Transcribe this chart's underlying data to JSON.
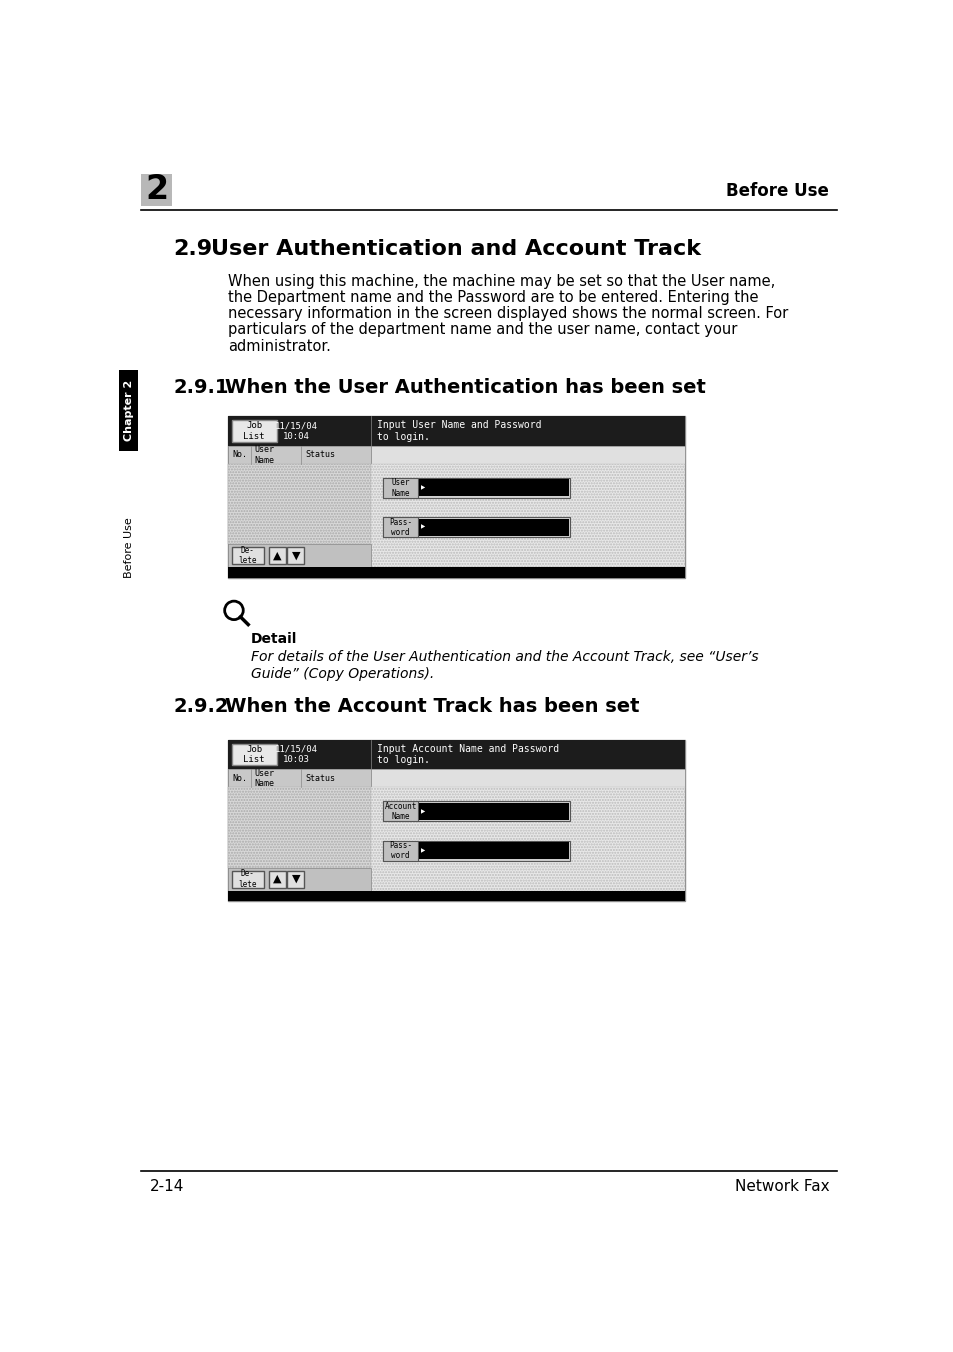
{
  "page_number": "2-14",
  "page_footer_right": "Network Fax",
  "header_number": "2",
  "header_right": "Before Use",
  "sidebar_top": "Chapter 2",
  "sidebar_bottom": "Before Use",
  "section_title": "2.9    User Authentication and Account Track",
  "section_body": "When using this machine, the machine may be set so that the User name,\nthe Department name and the Password are to be entered. Entering the\nnecessary information in the screen displayed shows the normal screen. For\nparticulars of the department name and the user name, contact your\nadministrator.",
  "subsection1_title": "2.9.1    When the User Authentication has been set",
  "subsection2_title": "2.9.2    When the Account Track has been set",
  "detail_label": "Detail",
  "detail_text": "For details of the User Authentication and the Account Track, see “User’s\nGuide” (Copy Operations).",
  "screen1": {
    "header_left": "Job\nList",
    "header_date": "11/15/04\n10:04",
    "header_msg": "Input User Name and Password\nto login.",
    "col_no": "No.",
    "col_username": "User\nName",
    "col_status": "Status",
    "field1_label": "User\nName",
    "field2_label": "Pass-\nword",
    "btn_delete": "De-\nlete"
  },
  "screen2": {
    "header_left": "Job\nList",
    "header_date": "11/15/04\n10:03",
    "header_msg": "Input Account Name and Password\nto login.",
    "col_no": "No.",
    "col_username": "User\nName",
    "col_status": "Status",
    "field1_label": "Account\nName",
    "field2_label": "Pass-\nword",
    "btn_delete": "De-\nlete"
  },
  "bg_color": "#ffffff",
  "text_color": "#000000",
  "sidebar_chapter_bg": "#000000",
  "sidebar_chapter_fg": "#ffffff",
  "number_box_bg": "#b0b0b0",
  "screen_hatch_color": "#aaaaaa",
  "screen_border": "#555555",
  "screen_header_bg": "#1a1a1a",
  "screen_header_fg": "#ffffff"
}
